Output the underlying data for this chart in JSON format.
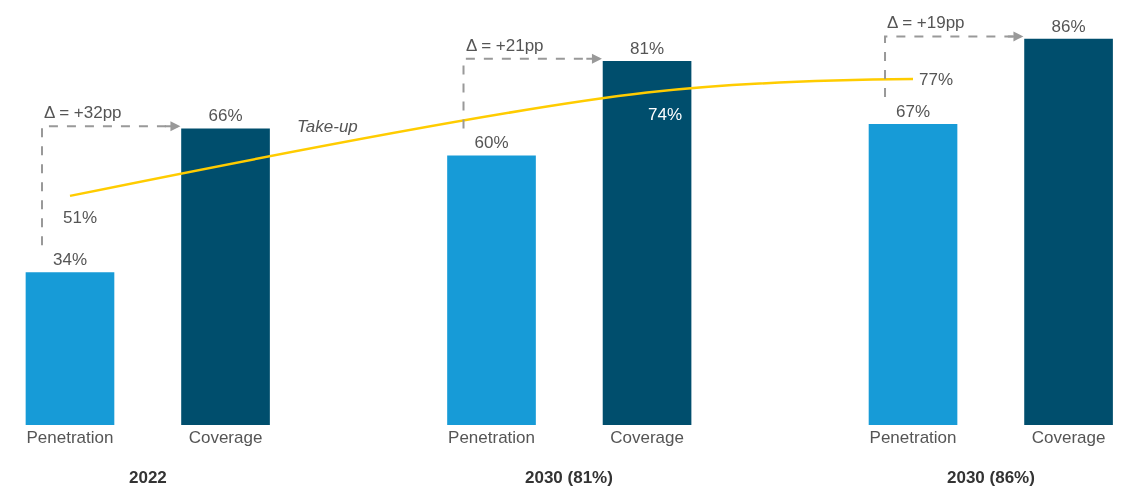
{
  "chart_data": {
    "type": "bar",
    "categories": [
      "Penetration",
      "Coverage",
      "Penetration",
      "Coverage",
      "Penetration",
      "Coverage"
    ],
    "series": [
      {
        "values": [
          34,
          66,
          60,
          81,
          67,
          86
        ],
        "colors": [
          "#179bd7",
          "#004e6d",
          "#179bd7",
          "#004e6d",
          "#179bd7",
          "#004e6d"
        ],
        "value_labels": [
          "34%",
          "66%",
          "60%",
          "81%",
          "67%",
          "86%"
        ]
      },
      {
        "type": "line",
        "name": "Take-up",
        "color": "#ffcc00",
        "values": [
          51,
          null,
          null,
          74,
          77,
          null
        ],
        "value_labels": [
          "51%",
          null,
          null,
          "74%",
          "77%",
          null
        ]
      }
    ],
    "annotations": [
      "Δ = +32pp",
      "Δ = +21pp",
      "Δ = +19pp",
      "2022",
      "2030 (81%)",
      "2030 (86%)"
    ]
  }
}
